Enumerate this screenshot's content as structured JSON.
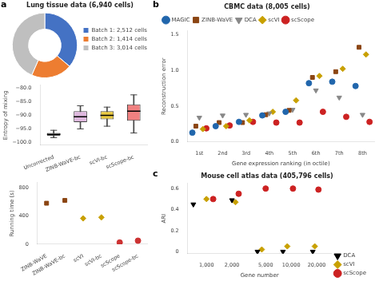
{
  "chart_data": [
    {
      "type": "doughnut",
      "title": "Lung tissue data (6,940 cells)",
      "categories": [
        "Batch 1: 2,512 cells",
        "Batch 2: 1,414 cells",
        "Batch 3: 3,014 cells"
      ],
      "values": [
        2512,
        1414,
        3014
      ],
      "colors": [
        "#4472c4",
        "#ed7d31",
        "#bfbfbf"
      ],
      "legend": "right",
      "annotations": [
        "a"
      ]
    },
    {
      "type": "box",
      "categories": [
        "Uncorrected",
        "ZINB-WaVE-bc",
        "scVI-bc",
        "scScope-bc"
      ],
      "medians": [
        -97.0,
        -90.5,
        -90.0,
        -88.5
      ],
      "q1": [
        -97.5,
        -92.5,
        -91.5,
        -92.0
      ],
      "q3": [
        -96.5,
        -88.5,
        -88.5,
        -86.0
      ],
      "whislo": [
        -98.2,
        -95.0,
        -94.0,
        -96.5
      ],
      "whishi": [
        -95.5,
        -86.5,
        -87.0,
        -82.5
      ],
      "colors": [
        "#ffffff",
        "#deb8de",
        "#e8c840",
        "#f08080"
      ],
      "ylabel": "Entropy of mixing",
      "ylim": [
        -101,
        -79
      ],
      "yticks": [
        {
          "value": -100,
          "label": "−100.0"
        },
        {
          "value": -95,
          "label": "−95.0"
        },
        {
          "value": -90,
          "label": "−90.0"
        },
        {
          "value": -85,
          "label": "−85.0"
        },
        {
          "value": -80,
          "label": "−80.0"
        }
      ],
      "grid": false
    },
    {
      "type": "scatter",
      "categories": [
        "ZINB-WaVE",
        "ZINB-WaVE-bc",
        "scVI",
        "scVI-bc",
        "scScope",
        "scScope-bc"
      ],
      "series": [
        {
          "color": "#8b4513",
          "marker": "square",
          "values": [
            580,
            620,
            null,
            null,
            null,
            null
          ]
        },
        {
          "color": "#c8a000",
          "marker": "diamond",
          "values": [
            null,
            null,
            365,
            380,
            null,
            null
          ]
        },
        {
          "color": "#cc3333",
          "marker": "circle",
          "values": [
            null,
            null,
            null,
            null,
            25,
            50
          ]
        }
      ],
      "ylabel": "Running time (s)",
      "ylim": [
        0,
        870
      ],
      "yticks": [
        0,
        400,
        800
      ],
      "grid": false
    },
    {
      "type": "scatter",
      "title": "CBMC data (8,005 cells)",
      "categories": [
        "1st",
        "2nd",
        "3rd",
        "4th",
        "5th",
        "6th",
        "7th",
        "8th"
      ],
      "series": [
        {
          "name": "MAGIC",
          "color": "#2166ac",
          "marker": "circle",
          "values": [
            0.13,
            0.22,
            0.28,
            0.37,
            0.42,
            0.82,
            0.84,
            0.78
          ]
        },
        {
          "name": "ZINB-WaVE",
          "color": "#8b4513",
          "marker": "square",
          "values": [
            0.22,
            0.27,
            0.27,
            0.38,
            0.44,
            0.9,
            0.98,
            1.32
          ]
        },
        {
          "name": "DCA",
          "color": "#888888",
          "marker": "triangle_down",
          "values": [
            0.34,
            0.37,
            0.38,
            0.4,
            0.45,
            0.72,
            0.62,
            0.38
          ]
        },
        {
          "name": "scVI",
          "color": "#c8a000",
          "marker": "diamond",
          "values": [
            0.18,
            0.22,
            0.3,
            0.42,
            0.58,
            0.92,
            1.02,
            1.22
          ]
        },
        {
          "name": "scScope",
          "color": "#cc2222",
          "marker": "circle",
          "values": [
            0.19,
            0.23,
            0.28,
            0.27,
            0.27,
            0.42,
            0.35,
            0.28
          ]
        }
      ],
      "xlabel": "Gene expression ranking (in octile)",
      "ylabel": "Reconstruction error",
      "ylim": [
        0.0,
        1.55
      ],
      "yticks": [
        {
          "value": 0,
          "label": "0.0"
        },
        0.5,
        {
          "value": 1,
          "label": "1.0"
        },
        1.5
      ],
      "grid": false,
      "legend": "upper left",
      "annotations": [
        "b"
      ]
    },
    {
      "type": "scatter",
      "title": "Mouse cell atlas data (405,796 cells)",
      "series": [
        {
          "name": "DCA",
          "color": "black",
          "marker": "triangle_down",
          "x": [
            700,
            2000,
            4000,
            8000,
            18000
          ],
          "values": [
            0.45,
            0.49,
            0.0,
            0.0,
            0.0
          ]
        },
        {
          "name": "scVI",
          "color": "#c8a000",
          "marker": "diamond",
          "x": [
            1000,
            2200,
            4500,
            9000,
            19000
          ],
          "values": [
            0.5,
            0.47,
            0.02,
            0.05,
            0.05
          ]
        },
        {
          "name": "scScope",
          "color": "#cc2222",
          "marker": "circle",
          "x": [
            1200,
            2400,
            5000,
            10500,
            21000
          ],
          "values": [
            0.5,
            0.55,
            0.6,
            0.6,
            0.59
          ]
        }
      ],
      "xlabel": "Gene number",
      "ylabel": "ARI",
      "log": "x",
      "xlim": [
        600,
        30000
      ],
      "xticks": [
        {
          "value": 1000,
          "label": "1,000"
        },
        {
          "value": 2000,
          "label": "2,000"
        },
        {
          "value": 5000,
          "label": "5,000"
        },
        {
          "value": 10000,
          "label": "10,000"
        },
        {
          "value": 20000,
          "label": "20,000"
        }
      ],
      "ylim": [
        -0.02,
        0.65
      ],
      "yticks": [
        0,
        0.2,
        0.4,
        0.6
      ],
      "grid": false,
      "legend": "lower right",
      "annotations": [
        "c"
      ]
    }
  ]
}
